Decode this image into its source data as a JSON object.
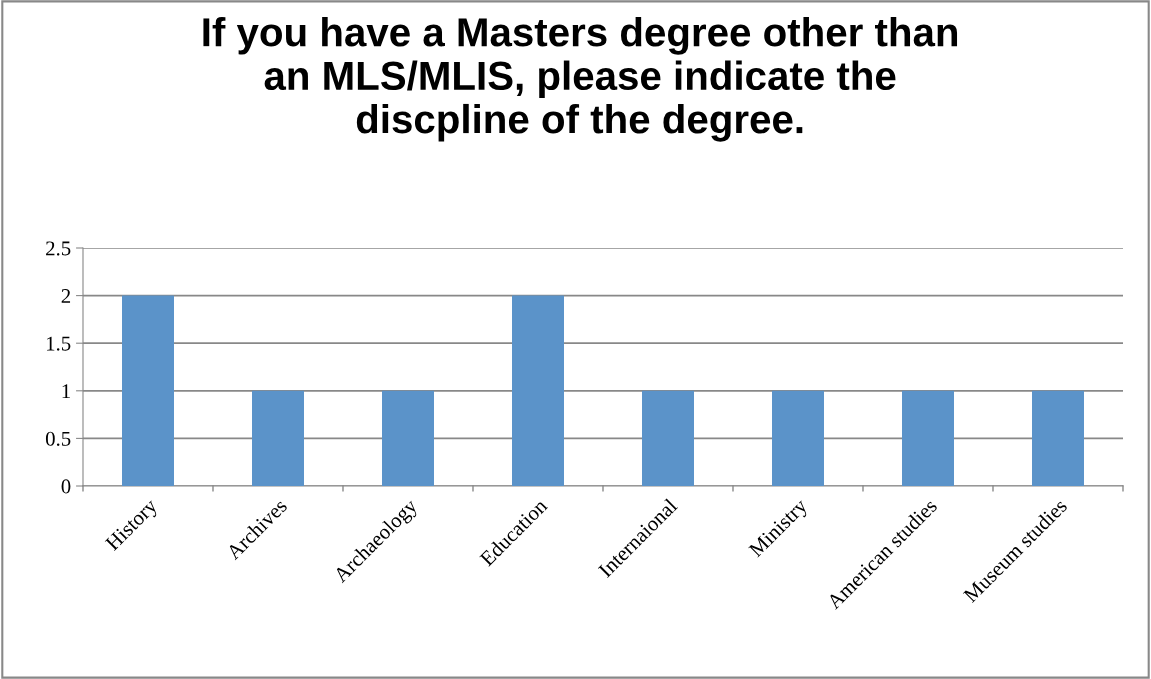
{
  "chart_data": {
    "type": "bar",
    "title": "If you have a Masters degree other than\nan MLS/MLIS, please indicate the\ndiscpline of the degree.",
    "categories": [
      "History",
      "Archives",
      "Archaeology",
      "Education",
      "Internaional",
      "Ministry",
      "American studies",
      "Museum studies"
    ],
    "values": [
      2,
      1,
      1,
      2,
      1,
      1,
      1,
      1
    ],
    "color": "#5b93c9",
    "ylim": [
      0,
      2.5
    ],
    "yticks": [
      0,
      0.5,
      1,
      1.5,
      2,
      2.5
    ],
    "grid": "y",
    "legend": false
  }
}
